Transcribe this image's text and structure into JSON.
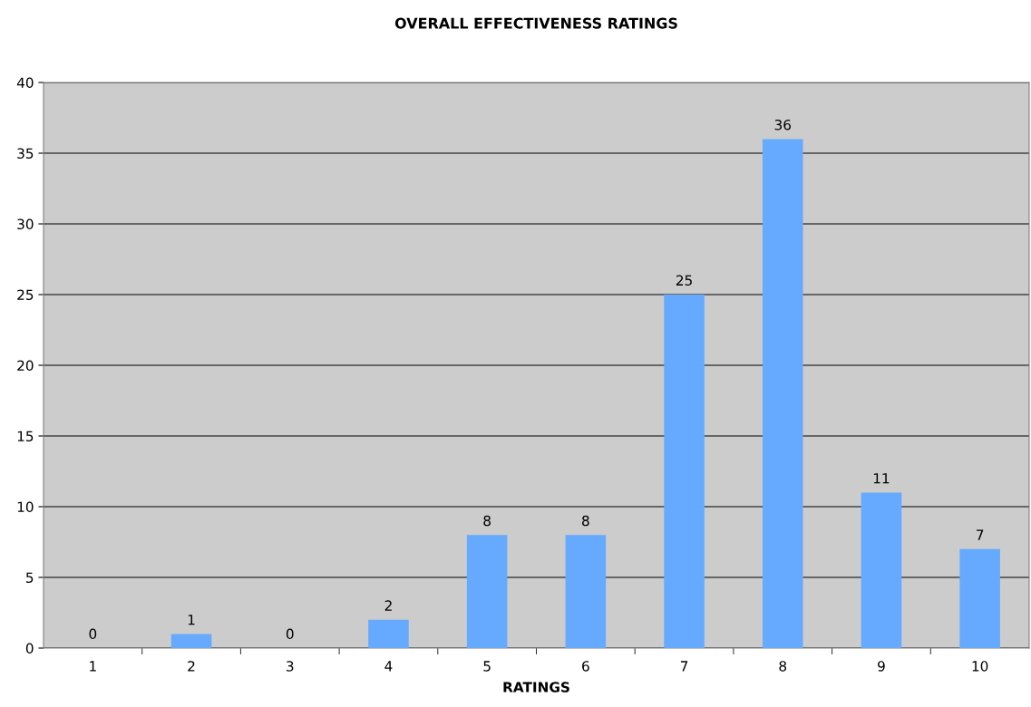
{
  "chart_data": {
    "type": "bar",
    "title": "OVERALL EFFECTIVENESS RATINGS",
    "xlabel": "RATINGS",
    "categories": [
      "1",
      "2",
      "3",
      "4",
      "5",
      "6",
      "7",
      "8",
      "9",
      "10"
    ],
    "values": [
      0,
      1,
      0,
      2,
      8,
      8,
      25,
      36,
      11,
      7
    ],
    "color": "#66aaff",
    "ylim": [
      0,
      40
    ],
    "yticks": [
      0,
      5,
      10,
      15,
      20,
      25,
      30,
      35,
      40
    ],
    "grid": "y",
    "data_labels": true,
    "legend": false
  }
}
